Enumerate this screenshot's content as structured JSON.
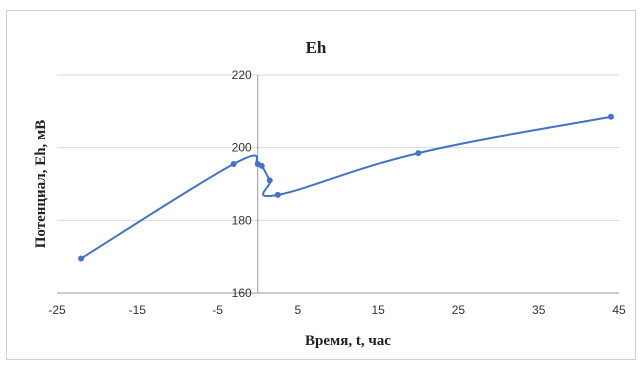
{
  "chart_data": {
    "type": "line",
    "title": "Eh",
    "xlabel": "Время, t, час",
    "ylabel": "Потенциал, Eh, мВ",
    "xlim": [
      -25,
      45
    ],
    "ylim": [
      160,
      220
    ],
    "xticks": [
      -25,
      -15,
      -5,
      5,
      15,
      25,
      35,
      45
    ],
    "yticks": [
      160,
      180,
      200,
      220
    ],
    "grid": true,
    "legend": "none",
    "color": "#4472c4",
    "series": [
      {
        "points": [
          {
            "x": -22,
            "y": 169.5
          },
          {
            "x": -3,
            "y": 195.5
          },
          {
            "x": 0,
            "y": 195.5
          },
          {
            "x": 0.5,
            "y": 195
          },
          {
            "x": 1.5,
            "y": 191
          },
          {
            "x": 2.5,
            "y": 187
          },
          {
            "x": 20,
            "y": 198.5
          },
          {
            "x": 44,
            "y": 208.5
          }
        ]
      }
    ]
  }
}
